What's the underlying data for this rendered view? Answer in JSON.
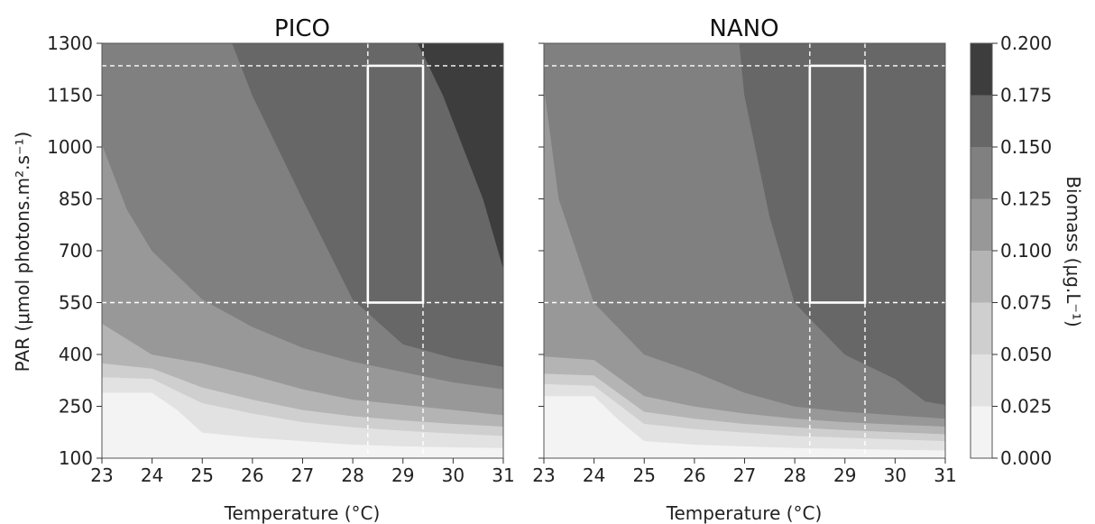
{
  "chart_data": {
    "type": "contour",
    "panels": [
      {
        "title": "PICO",
        "xlabel": "Temperature (°C)",
        "ylabel": "PAR (μmol photons.m².s⁻¹)",
        "xlim": [
          23,
          31
        ],
        "ylim": [
          100,
          1300
        ],
        "x_ticks": [
          23,
          24,
          25,
          26,
          27,
          28,
          29,
          30,
          31
        ],
        "y_ticks": [
          100,
          250,
          400,
          550,
          700,
          850,
          1000,
          1150,
          1300
        ],
        "contour_boundaries": [
          {
            "level": 0.025,
            "points": [
              [
                23,
                290
              ],
              [
                24,
                290
              ],
              [
                24.5,
                240
              ],
              [
                25,
                175
              ],
              [
                26,
                160
              ],
              [
                27,
                150
              ],
              [
                28,
                140
              ],
              [
                29,
                135
              ],
              [
                30,
                132
              ],
              [
                31,
                130
              ]
            ]
          },
          {
            "level": 0.05,
            "points": [
              [
                23,
                335
              ],
              [
                24,
                330
              ],
              [
                25,
                260
              ],
              [
                26,
                230
              ],
              [
                27,
                205
              ],
              [
                28,
                190
              ],
              [
                29,
                180
              ],
              [
                30,
                172
              ],
              [
                31,
                165
              ]
            ]
          },
          {
            "level": 0.075,
            "points": [
              [
                23,
                375
              ],
              [
                24,
                360
              ],
              [
                25,
                305
              ],
              [
                26,
                270
              ],
              [
                27,
                240
              ],
              [
                28,
                222
              ],
              [
                29,
                210
              ],
              [
                30,
                200
              ],
              [
                31,
                192
              ]
            ]
          },
          {
            "level": 0.1,
            "points": [
              [
                23,
                490
              ],
              [
                24,
                400
              ],
              [
                25,
                375
              ],
              [
                26,
                340
              ],
              [
                27,
                300
              ],
              [
                28,
                270
              ],
              [
                29,
                255
              ],
              [
                30,
                240
              ],
              [
                31,
                225
              ]
            ]
          },
          {
            "level": 0.125,
            "points": [
              [
                23,
                1010
              ],
              [
                23.5,
                820
              ],
              [
                24,
                700
              ],
              [
                25,
                560
              ],
              [
                26,
                480
              ],
              [
                27,
                420
              ],
              [
                28,
                380
              ],
              [
                29,
                350
              ],
              [
                30,
                320
              ],
              [
                31,
                300
              ]
            ]
          },
          {
            "level": 0.15,
            "points": [
              [
                25.6,
                1300
              ],
              [
                26,
                1150
              ],
              [
                27,
                850
              ],
              [
                28,
                560
              ],
              [
                29,
                430
              ],
              [
                30,
                390
              ],
              [
                31,
                365
              ]
            ]
          },
          {
            "level": 0.175,
            "points": [
              [
                29.3,
                1300
              ],
              [
                29.8,
                1150
              ],
              [
                30.2,
                1000
              ],
              [
                30.6,
                850
              ],
              [
                31,
                650
              ]
            ]
          }
        ],
        "highlight_box": {
          "x": [
            28.3,
            29.4
          ],
          "y": [
            550,
            1235
          ]
        },
        "reference_lines": {
          "x": [
            28.3,
            29.4
          ],
          "y": [
            550,
            1235
          ]
        }
      },
      {
        "title": "NANO",
        "xlabel": "Temperature (°C)",
        "xlim": [
          23,
          31
        ],
        "ylim": [
          100,
          1300
        ],
        "x_ticks": [
          23,
          24,
          25,
          26,
          27,
          28,
          29,
          30,
          31
        ],
        "contour_boundaries": [
          {
            "level": 0.025,
            "points": [
              [
                23,
                280
              ],
              [
                24,
                280
              ],
              [
                24.5,
                210
              ],
              [
                25,
                150
              ],
              [
                26,
                140
              ],
              [
                27,
                135
              ],
              [
                28,
                130
              ],
              [
                29,
                128
              ],
              [
                30,
                125
              ],
              [
                31,
                123
              ]
            ]
          },
          {
            "level": 0.05,
            "points": [
              [
                23,
                315
              ],
              [
                24,
                310
              ],
              [
                25,
                200
              ],
              [
                26,
                185
              ],
              [
                27,
                175
              ],
              [
                28,
                165
              ],
              [
                29,
                160
              ],
              [
                30,
                155
              ],
              [
                31,
                150
              ]
            ]
          },
          {
            "level": 0.075,
            "points": [
              [
                23,
                345
              ],
              [
                24,
                340
              ],
              [
                25,
                235
              ],
              [
                26,
                215
              ],
              [
                27,
                200
              ],
              [
                28,
                190
              ],
              [
                29,
                182
              ],
              [
                30,
                176
              ],
              [
                31,
                170
              ]
            ]
          },
          {
            "level": 0.1,
            "points": [
              [
                23,
                395
              ],
              [
                24,
                385
              ],
              [
                25,
                280
              ],
              [
                26,
                250
              ],
              [
                27,
                230
              ],
              [
                28,
                215
              ],
              [
                29,
                205
              ],
              [
                30,
                198
              ],
              [
                31,
                192
              ]
            ]
          },
          {
            "level": 0.125,
            "points": [
              [
                23,
                1180
              ],
              [
                23.3,
                850
              ],
              [
                24,
                550
              ],
              [
                25,
                400
              ],
              [
                26,
                350
              ],
              [
                27,
                290
              ],
              [
                28,
                250
              ],
              [
                29,
                235
              ],
              [
                30,
                225
              ],
              [
                31,
                215
              ]
            ]
          },
          {
            "level": 0.15,
            "points": [
              [
                26.9,
                1300
              ],
              [
                27,
                1150
              ],
              [
                27.5,
                800
              ],
              [
                28,
                550
              ],
              [
                29,
                400
              ],
              [
                30,
                330
              ],
              [
                30.6,
                265
              ],
              [
                31,
                255
              ]
            ]
          }
        ],
        "highlight_box": {
          "x": [
            28.3,
            29.4
          ],
          "y": [
            550,
            1235
          ]
        },
        "reference_lines": {
          "x": [
            28.3,
            29.4
          ],
          "y": [
            550,
            1235
          ]
        }
      }
    ],
    "colorbar": {
      "label": "Biomass (μg.L⁻¹)",
      "ticks": [
        "0.000",
        "0.025",
        "0.050",
        "0.075",
        "0.100",
        "0.125",
        "0.150",
        "0.175",
        "0.200"
      ],
      "levels": [
        0,
        0.025,
        0.05,
        0.075,
        0.1,
        0.125,
        0.15,
        0.175,
        0.2
      ],
      "colors": [
        "#f3f3f3",
        "#e2e2e2",
        "#cfcfcf",
        "#b4b4b4",
        "#989898",
        "#808080",
        "#676767",
        "#3d3d3d",
        "#141414"
      ]
    }
  }
}
